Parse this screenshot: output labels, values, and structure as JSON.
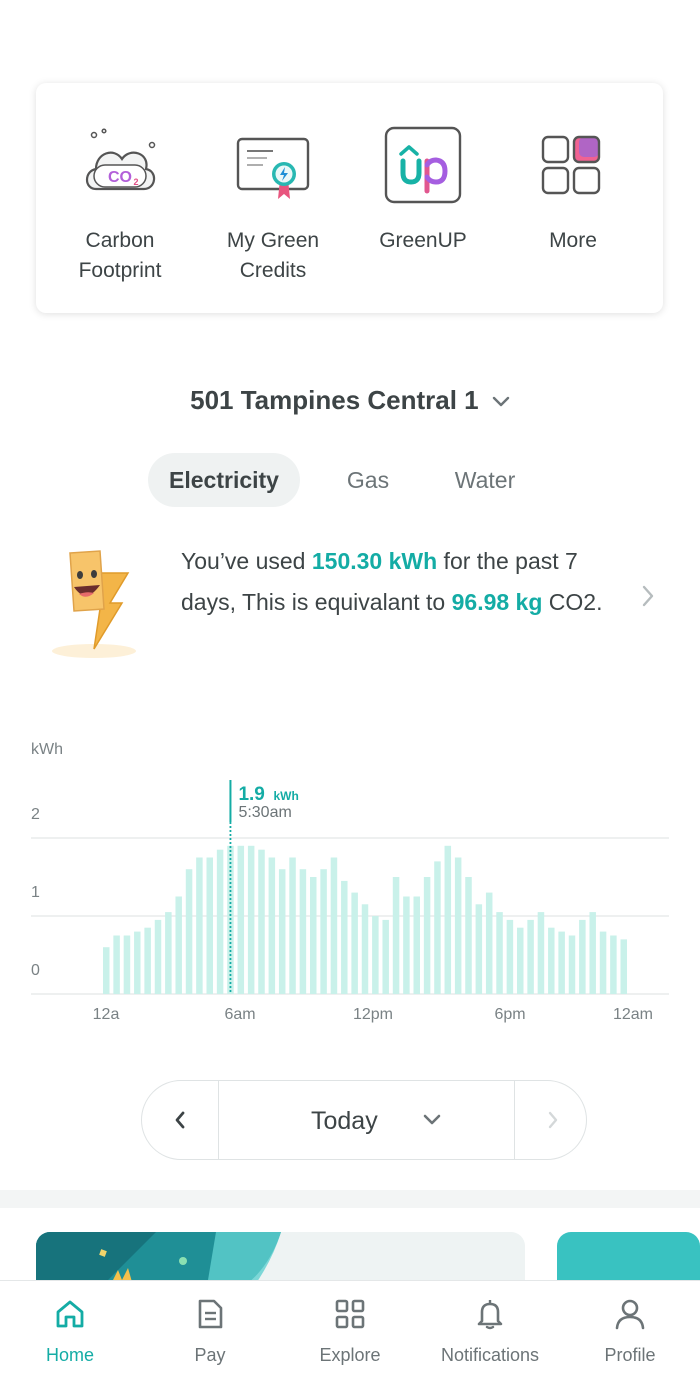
{
  "shortcuts": [
    {
      "label": "Carbon\nFootprint",
      "icon": "co2-cloud-icon"
    },
    {
      "label": "My Green\nCredits",
      "icon": "certificate-icon"
    },
    {
      "label": "GreenUP",
      "icon": "greenup-logo-icon"
    },
    {
      "label": "More",
      "icon": "grid-more-icon"
    }
  ],
  "address": "501 Tampines Central 1",
  "tabs": [
    "Electricity",
    "Gas",
    "Water"
  ],
  "active_tab": "Electricity",
  "summary": {
    "prefix": "You’ve used ",
    "usage": "150.30 kWh",
    "middle": " for the past 7 days, This is equivalant to ",
    "co2": "96.98 kg",
    "suffix": " CO2."
  },
  "chart_data": {
    "type": "bar",
    "unit": "kWh",
    "yticks": [
      "0",
      "1",
      "2"
    ],
    "ylim": [
      0,
      2.2
    ],
    "xticks": [
      "12a",
      "6am",
      "12pm",
      "6pm",
      "12am"
    ],
    "values": [
      0.6,
      0.75,
      0.75,
      0.8,
      0.85,
      0.95,
      1.05,
      1.25,
      1.6,
      1.75,
      1.75,
      1.85,
      1.9,
      1.9,
      1.9,
      1.85,
      1.75,
      1.6,
      1.75,
      1.6,
      1.5,
      1.6,
      1.75,
      1.45,
      1.3,
      1.15,
      1.0,
      0.95,
      1.5,
      1.25,
      1.25,
      1.5,
      1.7,
      1.9,
      1.75,
      1.5,
      1.15,
      1.3,
      1.05,
      0.95,
      0.85,
      0.95,
      1.05,
      0.85,
      0.8,
      0.75,
      0.95,
      1.05,
      0.8,
      0.75,
      0.7
    ],
    "selected_index": 12,
    "selected_value": "1.9",
    "selected_unit": "kWh",
    "selected_time": "5:30am",
    "bar_color": "#c9f1ea",
    "accent": "#14aca5"
  },
  "date_selector": {
    "label": "Today"
  },
  "nav": [
    {
      "label": "Home",
      "icon": "home-icon",
      "active": true
    },
    {
      "label": "Pay",
      "icon": "pay-document-icon",
      "active": false
    },
    {
      "label": "Explore",
      "icon": "explore-grid-icon",
      "active": false
    },
    {
      "label": "Notifications",
      "icon": "bell-icon",
      "active": false
    },
    {
      "label": "Profile",
      "icon": "profile-icon",
      "active": false
    }
  ],
  "colors": {
    "accent": "#14aca5",
    "text": "#3d4446",
    "muted": "#6c7477"
  }
}
